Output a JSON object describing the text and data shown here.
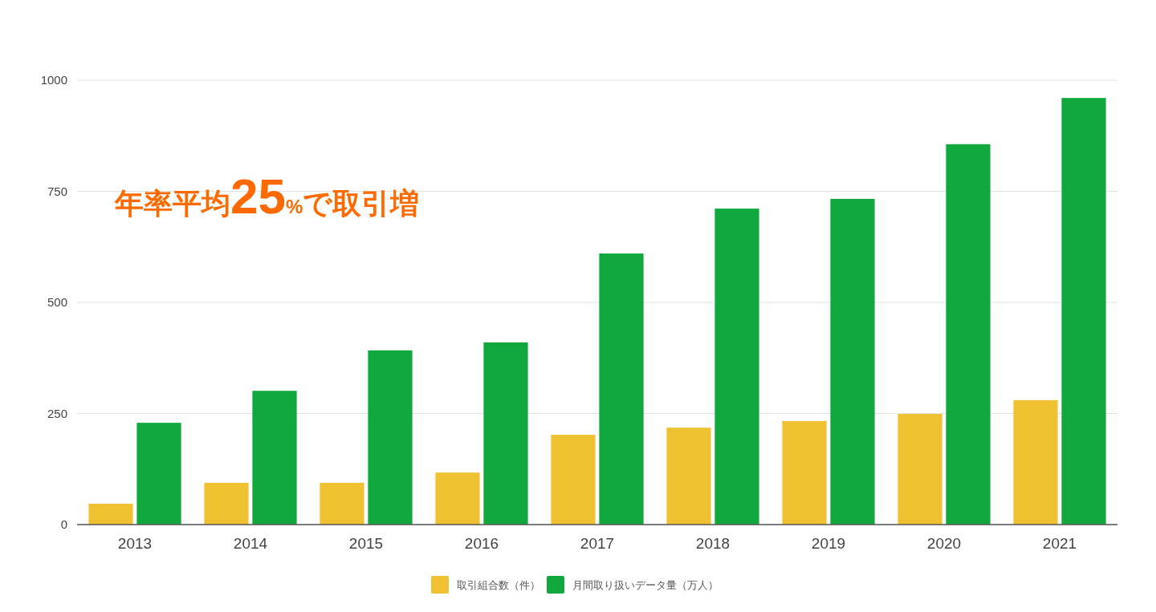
{
  "chart_data": {
    "type": "bar",
    "categories": [
      "2013",
      "2014",
      "2015",
      "2016",
      "2017",
      "2018",
      "2019",
      "2020",
      "2021"
    ],
    "series": [
      {
        "name": "取引組合数（件）",
        "color": "#f0c231",
        "values": [
          47,
          94,
          94,
          117,
          202,
          218,
          233,
          249,
          280
        ]
      },
      {
        "name": "月間取り扱いデータ量（万人）",
        "color": "#10a83d",
        "values": [
          229,
          301,
          392,
          410,
          610,
          711,
          733,
          856,
          960
        ]
      }
    ],
    "ylim": [
      0,
      1000
    ],
    "yticks": [
      0,
      250,
      500,
      750,
      1000
    ],
    "grid": "y",
    "legend": "bottom",
    "annotations": [
      "年率平均25%で取引増"
    ]
  }
}
